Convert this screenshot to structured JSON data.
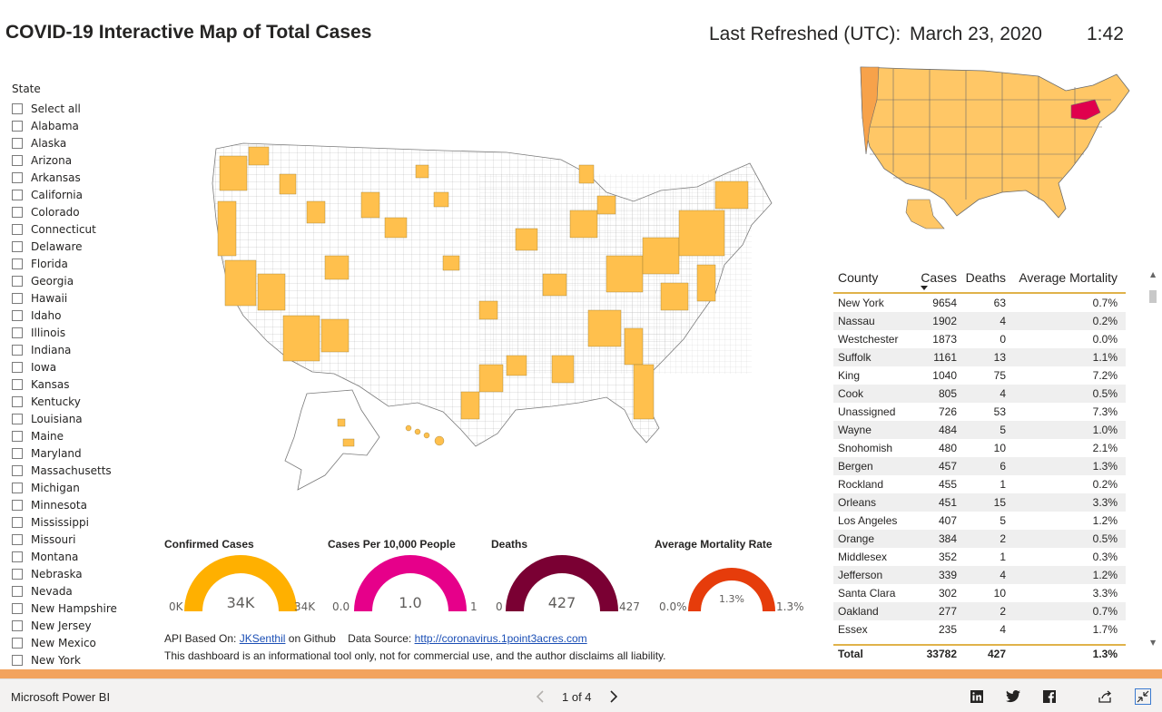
{
  "title": "COVID-19 Interactive Map of Total Cases",
  "refresh": {
    "label": "Last Refreshed (UTC):",
    "date": "March 23, 2020",
    "time": "1:42"
  },
  "slicer": {
    "title": "State",
    "items": [
      "Select all",
      "Alabama",
      "Alaska",
      "Arizona",
      "Arkansas",
      "California",
      "Colorado",
      "Connecticut",
      "Delaware",
      "Florida",
      "Georgia",
      "Hawaii",
      "Idaho",
      "Illinois",
      "Indiana",
      "Iowa",
      "Kansas",
      "Kentucky",
      "Louisiana",
      "Maine",
      "Maryland",
      "Massachusetts",
      "Michigan",
      "Minnesota",
      "Mississippi",
      "Missouri",
      "Montana",
      "Nebraska",
      "Nevada",
      "New Hampshire",
      "New Jersey",
      "New Mexico",
      "New York"
    ]
  },
  "colors": {
    "affected": "#ffc04d",
    "unaffected": "#ffffff",
    "highlight": "#e0004d",
    "accent_bar": "#f2a35e"
  },
  "gauges": [
    {
      "title": "Confirmed Cases",
      "min": "0K",
      "max": "34K",
      "value": "34K",
      "fill_fraction": 1.0,
      "color": "#ffb000"
    },
    {
      "title": "Cases Per 10,000 People",
      "min": "0.0",
      "max": "1",
      "value": "1.0",
      "fill_fraction": 1.0,
      "color": "#e6008a"
    },
    {
      "title": "Deaths",
      "min": "0",
      "max": "427",
      "value": "427",
      "fill_fraction": 1.0,
      "color": "#7a0033"
    },
    {
      "title": "Average Mortality Rate",
      "min": "0.0%",
      "max": "1.3%",
      "value": "1.3%",
      "fill_fraction": 1.0,
      "color": "#e63c0b"
    }
  ],
  "footer": {
    "api_prefix": "API Based On:",
    "api_link": "JKSenthil",
    "api_suffix": "on Github",
    "source_prefix": "Data Source:",
    "source_link": "http://coronavirus.1point3acres.com",
    "disclaimer": "This dashboard is an informational tool only, not for commercial use, and the author disclaims all liability."
  },
  "table": {
    "headers": [
      "County",
      "Cases",
      "Deaths",
      "Average Mortality"
    ],
    "rows": [
      [
        "New York",
        "9654",
        "63",
        "0.7%"
      ],
      [
        "Nassau",
        "1902",
        "4",
        "0.2%"
      ],
      [
        "Westchester",
        "1873",
        "0",
        "0.0%"
      ],
      [
        "Suffolk",
        "1161",
        "13",
        "1.1%"
      ],
      [
        "King",
        "1040",
        "75",
        "7.2%"
      ],
      [
        "Cook",
        "805",
        "4",
        "0.5%"
      ],
      [
        "Unassigned",
        "726",
        "53",
        "7.3%"
      ],
      [
        "Wayne",
        "484",
        "5",
        "1.0%"
      ],
      [
        "Snohomish",
        "480",
        "10",
        "2.1%"
      ],
      [
        "Bergen",
        "457",
        "6",
        "1.3%"
      ],
      [
        "Rockland",
        "455",
        "1",
        "0.2%"
      ],
      [
        "Orleans",
        "451",
        "15",
        "3.3%"
      ],
      [
        "Los Angeles",
        "407",
        "5",
        "1.2%"
      ],
      [
        "Orange",
        "384",
        "2",
        "0.5%"
      ],
      [
        "Middlesex",
        "352",
        "1",
        "0.3%"
      ],
      [
        "Jefferson",
        "339",
        "4",
        "1.2%"
      ],
      [
        "Santa Clara",
        "302",
        "10",
        "3.3%"
      ],
      [
        "Oakland",
        "277",
        "2",
        "0.7%"
      ],
      [
        "Essex",
        "235",
        "4",
        "1.7%"
      ]
    ],
    "total": [
      "Total",
      "33782",
      "427",
      "1.3%"
    ]
  },
  "bottombar": {
    "brand": "Microsoft Power BI",
    "page_label": "1 of 4",
    "icons": [
      "linkedin-icon",
      "twitter-icon",
      "facebook-icon",
      "share-icon",
      "fullscreen-exit-icon"
    ]
  }
}
